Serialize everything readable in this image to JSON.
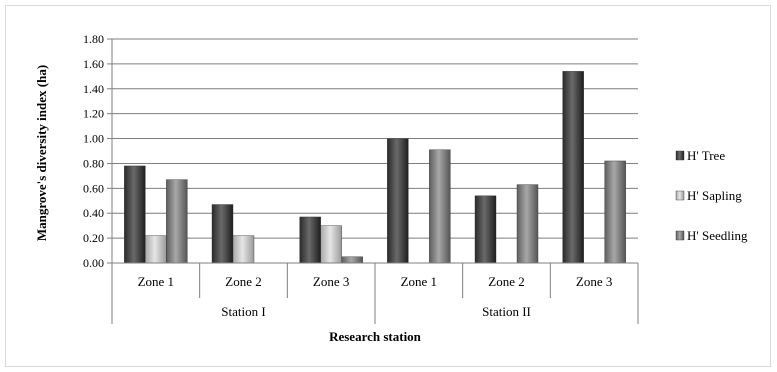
{
  "chart_data": {
    "type": "bar",
    "title": "",
    "xlabel": "Research station",
    "ylabel": "Mangrove's diversity index (ha)",
    "ylim": [
      0,
      1.8
    ],
    "yticks": [
      "0.00",
      "0.20",
      "0.40",
      "0.60",
      "0.80",
      "1.00",
      "1.20",
      "1.40",
      "1.60",
      "1.80"
    ],
    "grid": true,
    "legend_position": "right",
    "groups": [
      {
        "label": "Station I",
        "categories": [
          "Zone 1",
          "Zone 2",
          "Zone 3"
        ]
      },
      {
        "label": "Station II",
        "categories": [
          "Zone 1",
          "Zone 2",
          "Zone 3"
        ]
      }
    ],
    "series": [
      {
        "name": "H' Tree",
        "color": "#404040",
        "values": [
          0.78,
          0.47,
          0.37,
          1.0,
          0.54,
          1.54
        ]
      },
      {
        "name": "H' Sapling",
        "color": "#bfbfbf",
        "values": [
          0.22,
          0.22,
          0.3,
          0.0,
          0.0,
          0.0
        ]
      },
      {
        "name": "H' Seedling",
        "color": "#7f7f7f",
        "values": [
          0.67,
          0.0,
          0.05,
          0.91,
          0.63,
          0.82
        ]
      }
    ]
  }
}
